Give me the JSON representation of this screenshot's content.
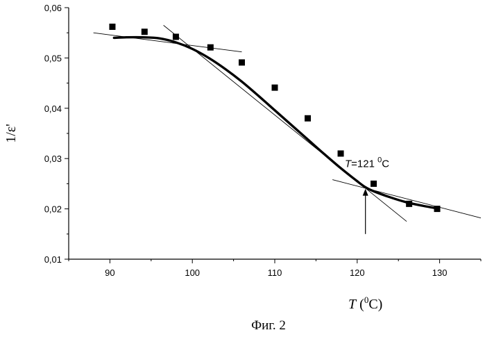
{
  "chart_data": {
    "type": "scatter",
    "caption": "Фиг. 2",
    "xlabel_var": "T",
    "xlabel_open": " (",
    "xlabel_sup": "0",
    "xlabel_close": "C)",
    "ylabel": "1/ε'",
    "xlim": [
      85,
      135
    ],
    "ylim": [
      0.01,
      0.06
    ],
    "x_ticks": [
      90,
      100,
      110,
      120,
      130
    ],
    "x_tick_labels": [
      "90",
      "100",
      "110",
      "120",
      "130"
    ],
    "y_ticks": [
      0.01,
      0.02,
      0.03,
      0.04,
      0.05,
      0.06
    ],
    "y_tick_labels": [
      "0,01",
      "0,02",
      "0,03",
      "0,04",
      "0,05",
      "0,06"
    ],
    "grid": false,
    "series": [
      {
        "kind": "points",
        "marker": "square",
        "x": [
          90.3,
          94.2,
          98.0,
          102.2,
          106.0,
          110.0,
          114.0,
          118.0,
          122.0,
          126.3,
          129.7
        ],
        "y": [
          0.0562,
          0.0552,
          0.0542,
          0.0521,
          0.0491,
          0.0441,
          0.038,
          0.031,
          0.025,
          0.021,
          0.02
        ]
      },
      {
        "kind": "fit-curve",
        "x": [
          90.5,
          92,
          94,
          96,
          98,
          100,
          102,
          104,
          106,
          108,
          110,
          112,
          114,
          116,
          118,
          120,
          121,
          122,
          124,
          126,
          128,
          129.7
        ],
        "y": [
          0.054,
          0.0541,
          0.0541,
          0.0539,
          0.0531,
          0.0518,
          0.05,
          0.0478,
          0.0453,
          0.0425,
          0.0396,
          0.0367,
          0.0338,
          0.0309,
          0.0281,
          0.0255,
          0.0243,
          0.0235,
          0.0223,
          0.0213,
          0.0206,
          0.0201
        ]
      },
      {
        "kind": "tangent-line",
        "x": [
          88,
          106
        ],
        "y": [
          0.055,
          0.0512
        ]
      },
      {
        "kind": "tangent-line",
        "x": [
          96.5,
          126
        ],
        "y": [
          0.0565,
          0.0175
        ]
      },
      {
        "kind": "tangent-line",
        "x": [
          117,
          135
        ],
        "y": [
          0.0258,
          0.0182
        ]
      }
    ],
    "annotations": [
      {
        "text_var": "T",
        "text_eq": "=121 ",
        "text_sup": "0",
        "text_unit": "C",
        "x": 118.5,
        "y": 0.0283
      }
    ],
    "arrow": {
      "x": 121,
      "y_from": 0.015,
      "y_to": 0.024
    }
  }
}
